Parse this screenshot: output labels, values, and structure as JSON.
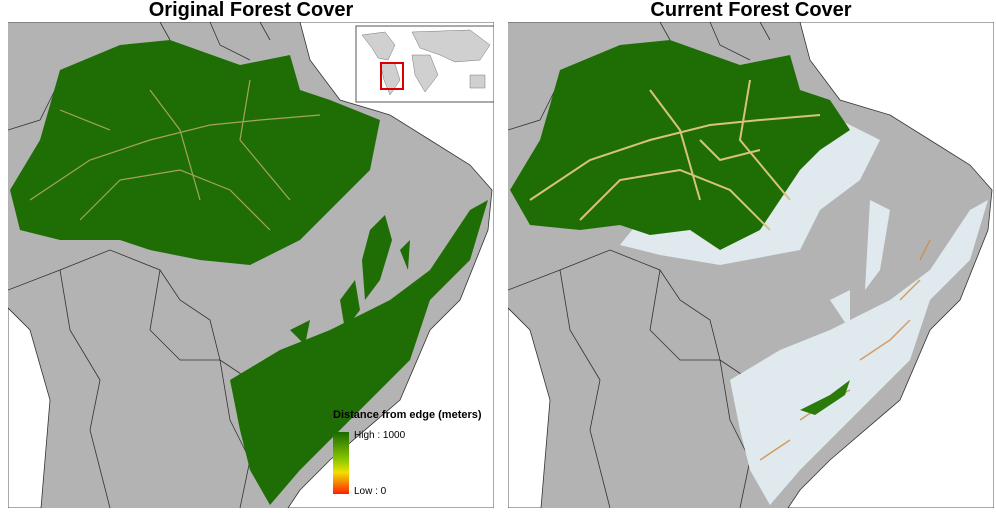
{
  "panels": [
    {
      "title": "Original Forest Cover"
    },
    {
      "title": "Current Forest Cover"
    }
  ],
  "legend": {
    "title": "Distance from edge (meters)",
    "high": "High : 1000",
    "low": "Low : 0"
  }
}
